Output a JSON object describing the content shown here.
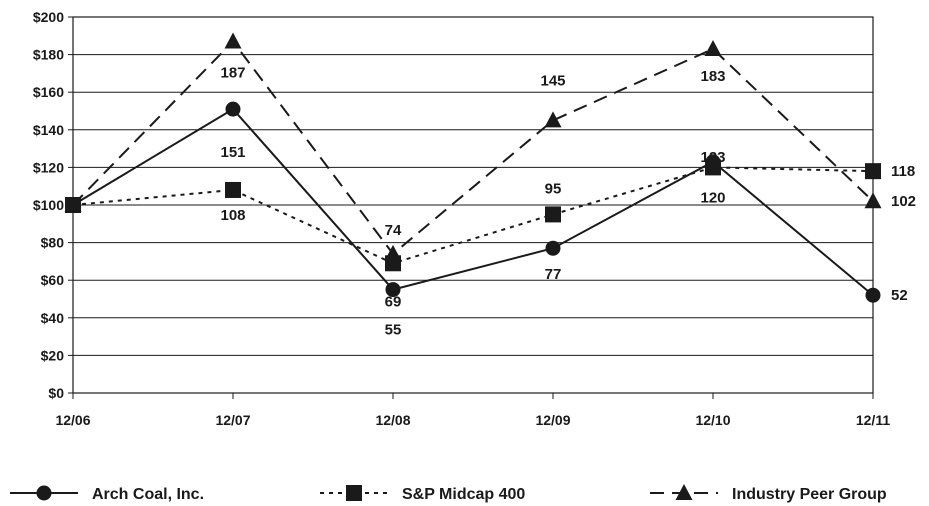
{
  "chart_data": {
    "type": "line",
    "categories": [
      "12/06",
      "12/07",
      "12/08",
      "12/09",
      "12/10",
      "12/11"
    ],
    "ylim": [
      0,
      200
    ],
    "ytick_step": 20,
    "ytick_labels": [
      "$0",
      "$20",
      "$40",
      "$60",
      "$80",
      "$100",
      "$120",
      "$140",
      "$160",
      "$180",
      "$200"
    ],
    "grid": true,
    "legend_position": "bottom",
    "series": [
      {
        "name": "Arch Coal, Inc.",
        "values": [
          100,
          151,
          55,
          77,
          123,
          52
        ],
        "data_labels": [
          "",
          "151",
          "55",
          "77",
          "123",
          "52"
        ],
        "line_style": "solid",
        "marker": "circle",
        "color": "#1a1a1a"
      },
      {
        "name": "S&P Midcap 400",
        "values": [
          100,
          108,
          69,
          95,
          120,
          118
        ],
        "data_labels": [
          "",
          "108",
          "69",
          "95",
          "120",
          "118"
        ],
        "line_style": "dotted",
        "marker": "square",
        "color": "#1a1a1a"
      },
      {
        "name": "Industry Peer Group",
        "values": [
          100,
          187,
          74,
          145,
          183,
          102
        ],
        "data_labels": [
          "",
          "187",
          "74",
          "145",
          "183",
          "102"
        ],
        "line_style": "dashed",
        "marker": "triangle",
        "color": "#1a1a1a"
      }
    ]
  }
}
